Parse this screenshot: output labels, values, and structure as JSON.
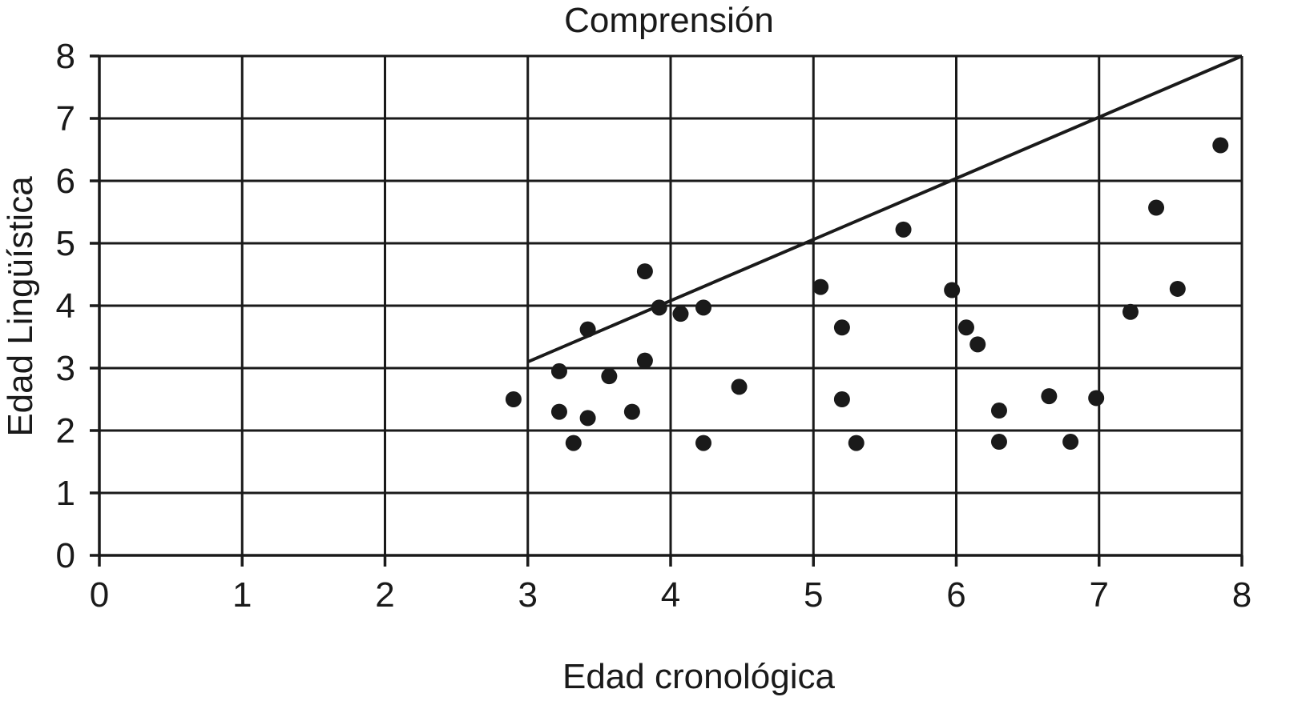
{
  "chart_data": {
    "type": "scatter",
    "title": "Comprensión",
    "xlabel": "Edad cronológica",
    "ylabel": "Edad Lingüística",
    "xlim": [
      0,
      8
    ],
    "ylim": [
      0,
      8
    ],
    "xticks": [
      "0",
      "1",
      "2",
      "3",
      "4",
      "5",
      "6",
      "7",
      "8"
    ],
    "yticks": [
      "0",
      "1",
      "2",
      "3",
      "4",
      "5",
      "6",
      "7",
      "8"
    ],
    "grid": true,
    "points": [
      {
        "x": 2.9,
        "y": 2.5
      },
      {
        "x": 3.22,
        "y": 2.95
      },
      {
        "x": 3.22,
        "y": 2.3
      },
      {
        "x": 3.32,
        "y": 1.8
      },
      {
        "x": 3.42,
        "y": 3.62
      },
      {
        "x": 3.42,
        "y": 2.2
      },
      {
        "x": 3.57,
        "y": 2.87
      },
      {
        "x": 3.73,
        "y": 2.3
      },
      {
        "x": 3.82,
        "y": 4.55
      },
      {
        "x": 3.82,
        "y": 3.12
      },
      {
        "x": 3.92,
        "y": 3.97
      },
      {
        "x": 4.07,
        "y": 3.87
      },
      {
        "x": 4.23,
        "y": 3.97
      },
      {
        "x": 4.23,
        "y": 1.8
      },
      {
        "x": 4.48,
        "y": 2.7
      },
      {
        "x": 5.05,
        "y": 4.3
      },
      {
        "x": 5.2,
        "y": 3.65
      },
      {
        "x": 5.2,
        "y": 2.5
      },
      {
        "x": 5.3,
        "y": 1.8
      },
      {
        "x": 5.63,
        "y": 5.22
      },
      {
        "x": 5.97,
        "y": 4.25
      },
      {
        "x": 6.07,
        "y": 3.65
      },
      {
        "x": 6.15,
        "y": 3.38
      },
      {
        "x": 6.3,
        "y": 2.32
      },
      {
        "x": 6.3,
        "y": 1.82
      },
      {
        "x": 6.65,
        "y": 2.55
      },
      {
        "x": 6.8,
        "y": 1.82
      },
      {
        "x": 6.98,
        "y": 2.52
      },
      {
        "x": 7.22,
        "y": 3.9
      },
      {
        "x": 7.4,
        "y": 5.57
      },
      {
        "x": 7.55,
        "y": 4.27
      },
      {
        "x": 7.85,
        "y": 6.57
      }
    ],
    "reference_line": {
      "from": [
        3.0,
        3.1
      ],
      "to": [
        8.0,
        8.0
      ]
    }
  }
}
